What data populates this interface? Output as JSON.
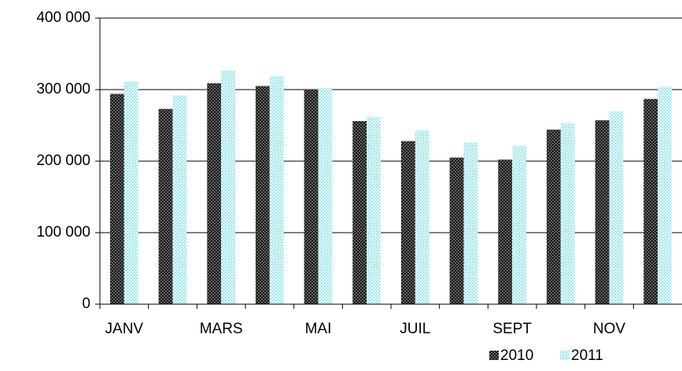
{
  "chart_data": {
    "type": "bar",
    "categories": [
      "JANV",
      null,
      "MARS",
      null,
      "MAI",
      null,
      "JUIL",
      null,
      "SEPT",
      null,
      "NOV",
      null
    ],
    "series": [
      {
        "name": "2010",
        "color": "#333333",
        "values": [
          294000,
          273000,
          309000,
          305000,
          300000,
          256000,
          228000,
          205000,
          202000,
          244000,
          257000,
          287000
        ]
      },
      {
        "name": "2011",
        "color": "#ccffff",
        "values": [
          311000,
          292000,
          327000,
          319000,
          302000,
          262000,
          243000,
          226000,
          221000,
          253000,
          270000,
          304000
        ]
      }
    ],
    "ylim": [
      0,
      400000
    ],
    "yticks": [
      0,
      {
        "value": 100000,
        "label": "100 000"
      },
      {
        "value": 200000,
        "label": "200 000"
      },
      {
        "value": 300000,
        "label": "300 000"
      },
      {
        "value": 400000,
        "label": "400 000"
      }
    ],
    "grid": true
  }
}
